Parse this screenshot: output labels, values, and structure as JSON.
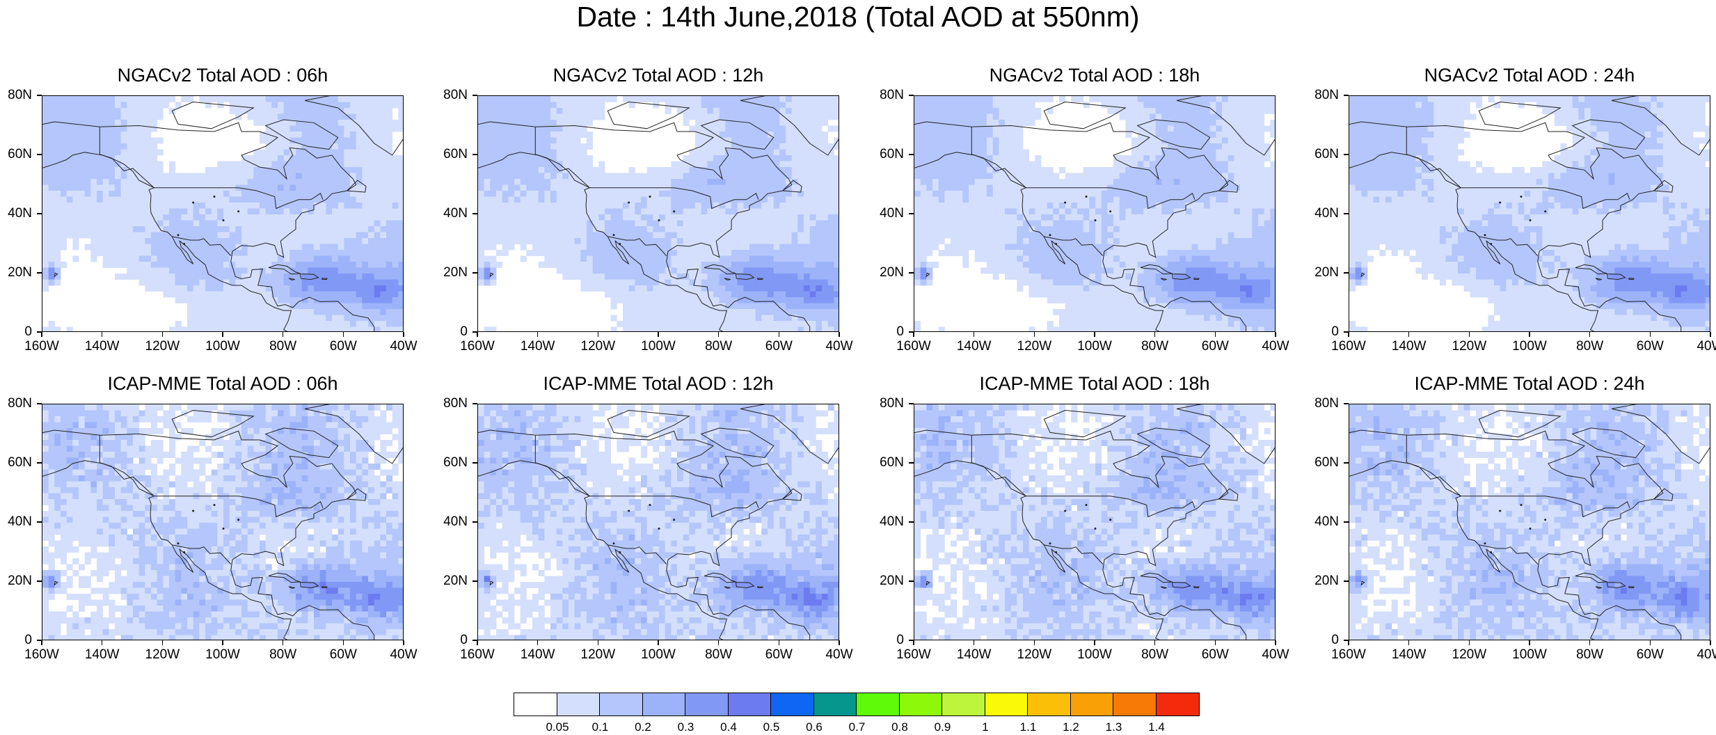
{
  "title": "Date : 14th June,2018 (Total AOD at 550nm)",
  "panels": [
    {
      "title": "NGACv2 Total AOD : 06h",
      "model": "NGACv2",
      "hour": "06h"
    },
    {
      "title": "NGACv2 Total AOD : 12h",
      "model": "NGACv2",
      "hour": "12h"
    },
    {
      "title": "NGACv2 Total AOD : 18h",
      "model": "NGACv2",
      "hour": "18h"
    },
    {
      "title": "NGACv2 Total AOD : 24h",
      "model": "NGACv2",
      "hour": "24h"
    },
    {
      "title": "ICAP-MME Total AOD : 06h",
      "model": "ICAP-MME",
      "hour": "06h"
    },
    {
      "title": "ICAP-MME Total AOD : 12h",
      "model": "ICAP-MME",
      "hour": "12h"
    },
    {
      "title": "ICAP-MME Total AOD : 18h",
      "model": "ICAP-MME",
      "hour": "18h"
    },
    {
      "title": "ICAP-MME Total AOD : 24h",
      "model": "ICAP-MME",
      "hour": "24h"
    }
  ],
  "lat_ticks": [
    "80N",
    "60N",
    "40N",
    "20N",
    "0"
  ],
  "lon_ticks": [
    "160W",
    "140W",
    "120W",
    "100W",
    "80W",
    "60W",
    "40W"
  ],
  "colorbar": {
    "labels": [
      "0.05",
      "0.1",
      "0.2",
      "0.3",
      "0.4",
      "0.5",
      "0.6",
      "0.7",
      "0.8",
      "0.9",
      "1",
      "1.1",
      "1.2",
      "1.3",
      "1.4"
    ],
    "colors": [
      "#ffffff",
      "#d4dffd",
      "#b4c6fb",
      "#9cb3fa",
      "#8198f5",
      "#6c7bf0",
      "#0f66f2",
      "#06968e",
      "#5dfb09",
      "#8ef80a",
      "#bcf53b",
      "#fafa07",
      "#fbbf07",
      "#f9a006",
      "#f77a07",
      "#f42a0c"
    ]
  }
}
